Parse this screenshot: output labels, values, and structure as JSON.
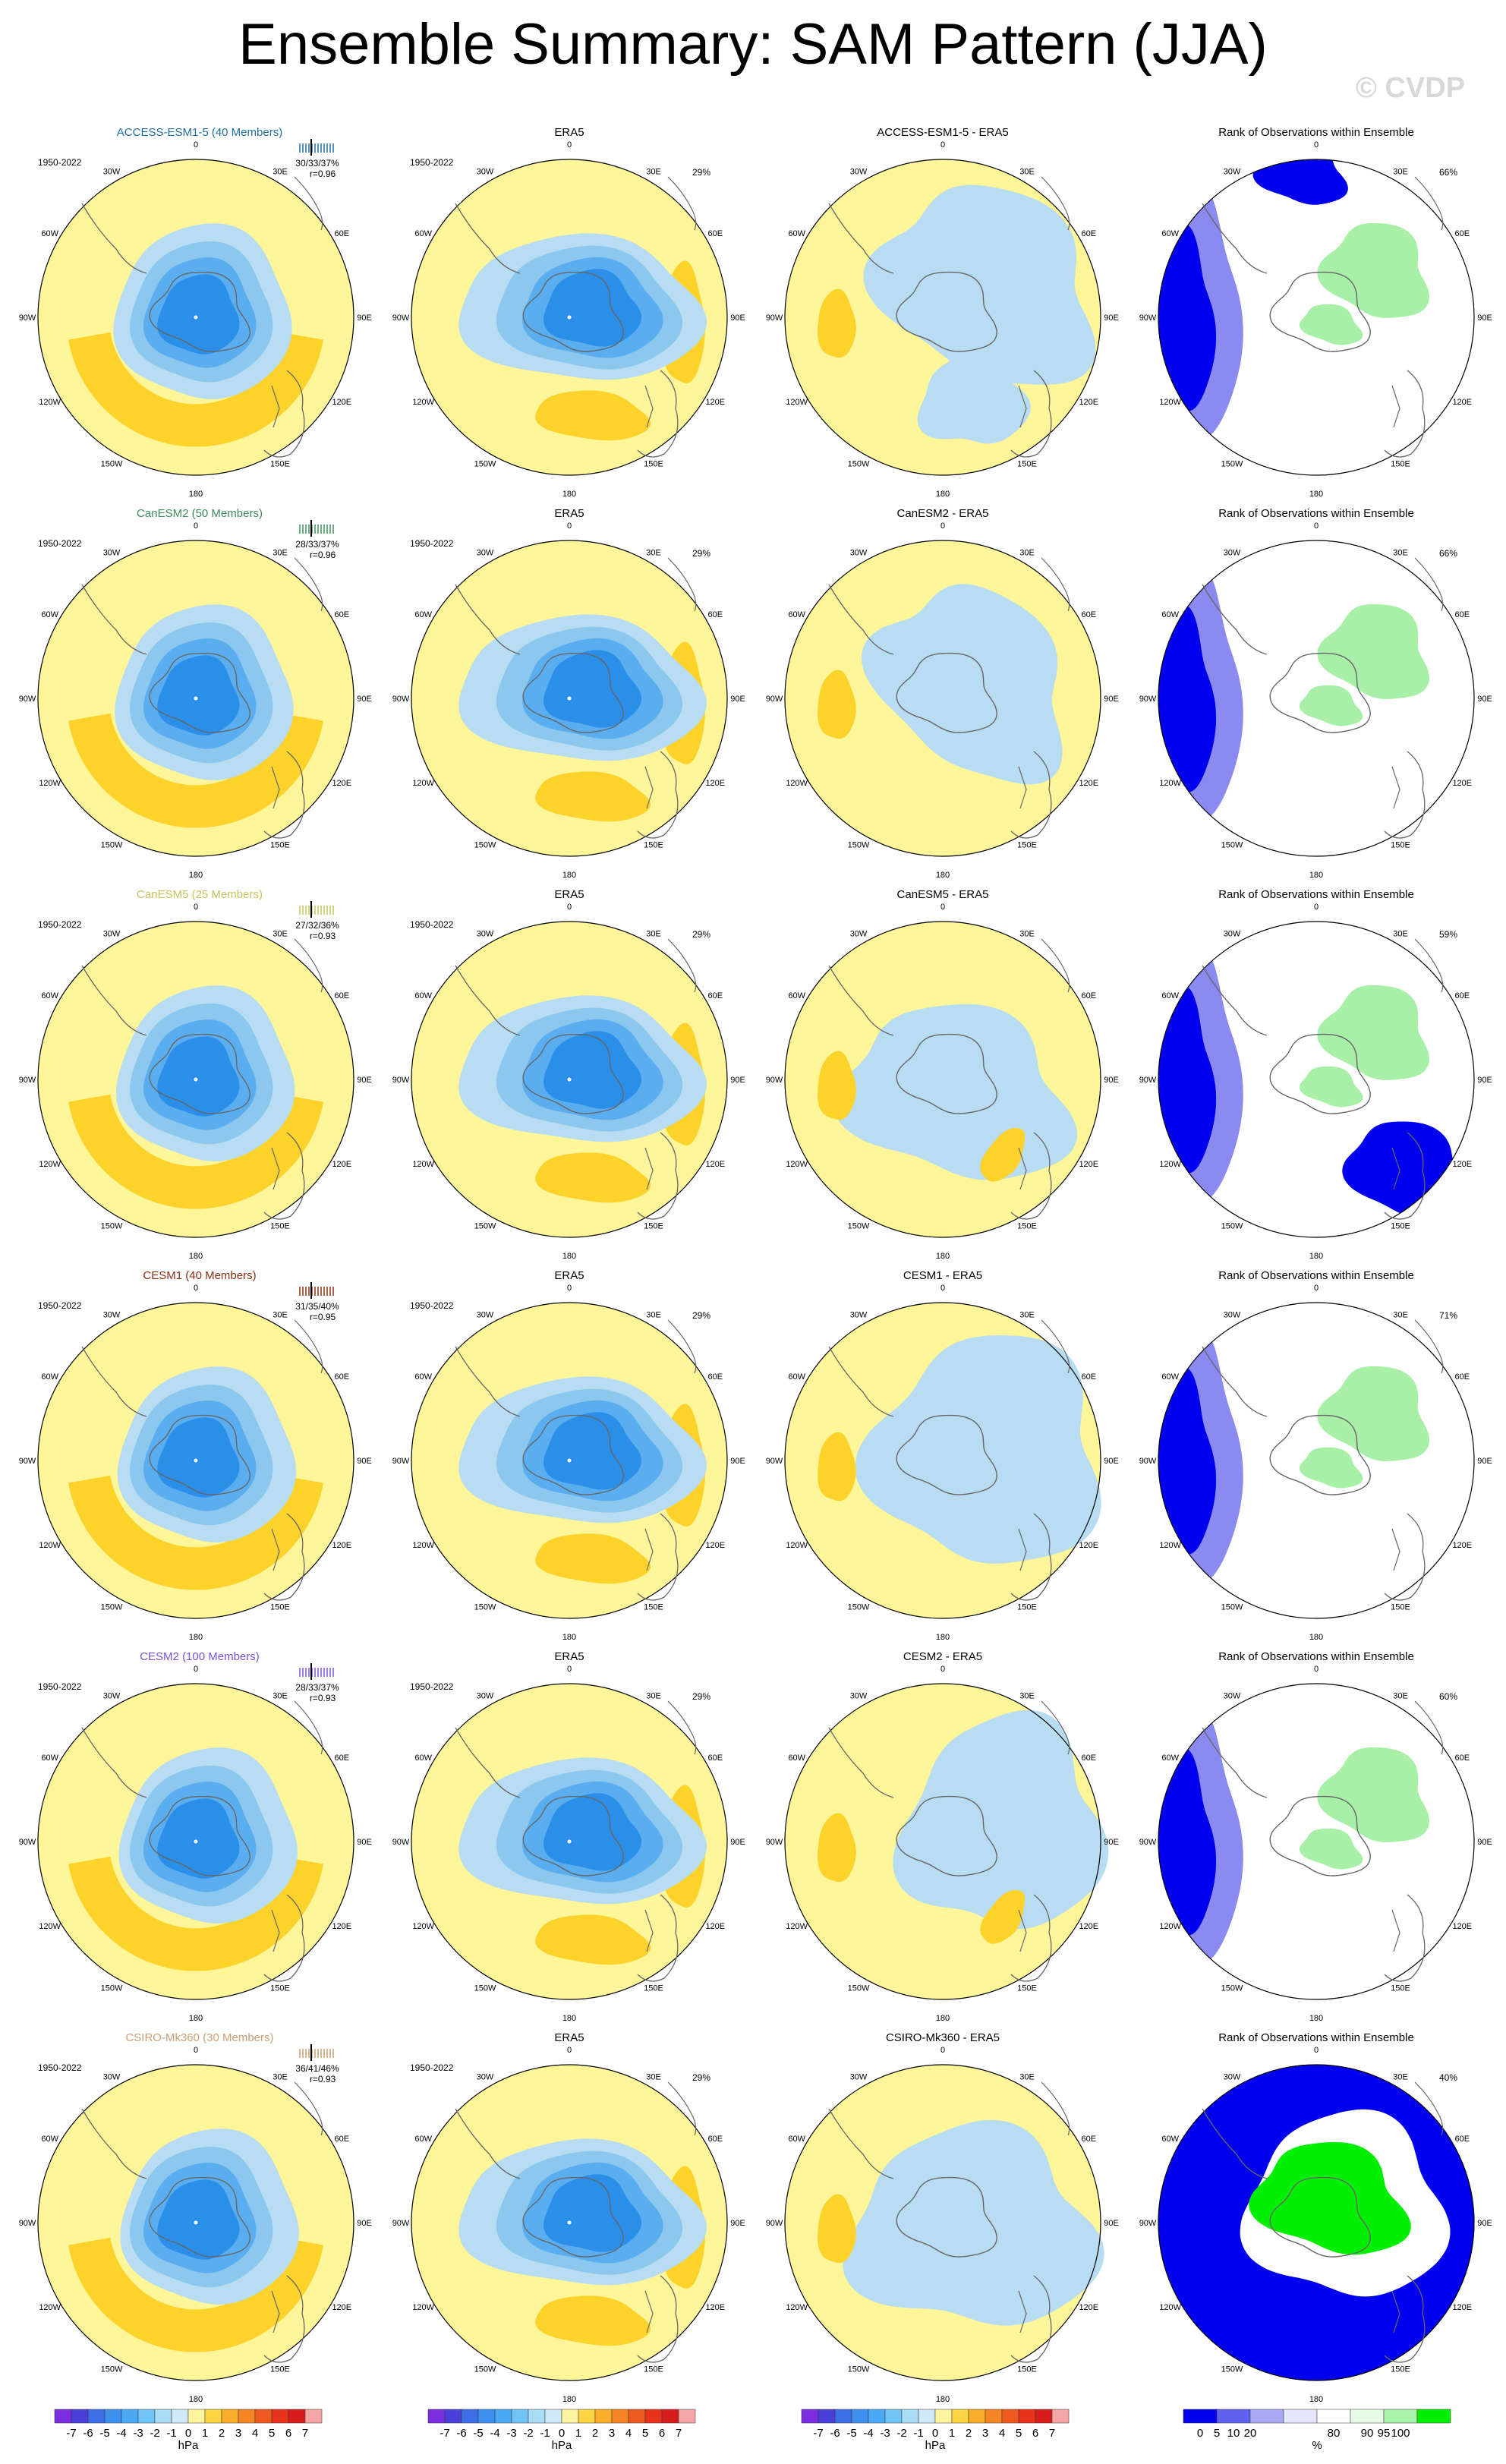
{
  "title": "Ensemble Summary: SAM Pattern (JJA)",
  "watermark": "© CVDP",
  "period": "1950-2022",
  "lon_labels": [
    "0",
    "30E",
    "60E",
    "90E",
    "120E",
    "150E",
    "180",
    "150W",
    "120W",
    "90W",
    "60W",
    "30W"
  ],
  "colors": {
    "pos1": "#fff599",
    "pos2": "#fdd22a",
    "pos3": "#f9a825",
    "pos4": "#f47c20",
    "neg1": "#b8dcf2",
    "neg2": "#8cc8ee",
    "neg3": "#5aaef0",
    "neg4": "#2b8ee8",
    "neg5": "#4a62dd",
    "neg6": "#5a3fc8",
    "rank_lo": "#0000ee",
    "rank_mid": "#8a8af0",
    "rank_white": "#ffffff",
    "rank_hi": "#00ee00",
    "rank_hilite": "#a8f0a8",
    "land": "#666666"
  },
  "rows": [
    {
      "model": "ACCESS-ESM1-5 (40 Members)",
      "model_color": "#1f6fa0",
      "stats": "30/33/37%",
      "corr": "r=0.96",
      "obs_pct": "29%",
      "diff_title": "ACCESS-ESM1-5 - ERA5",
      "rank_pct": "66%"
    },
    {
      "model": "CanESM2 (50 Members)",
      "model_color": "#3f8a5a",
      "stats": "28/33/37%",
      "corr": "r=0.96",
      "obs_pct": "29%",
      "diff_title": "CanESM2 - ERA5",
      "rank_pct": "66%"
    },
    {
      "model": "CanESM5 (25 Members)",
      "model_color": "#c9c260",
      "stats": "27/32/36%",
      "corr": "r=0.93",
      "obs_pct": "29%",
      "diff_title": "CanESM5 - ERA5",
      "rank_pct": "59%"
    },
    {
      "model": "CESM1 (40 Members)",
      "model_color": "#8a2f12",
      "stats": "31/35/40%",
      "corr": "r=0.95",
      "obs_pct": "29%",
      "diff_title": "CESM1 - ERA5",
      "rank_pct": "71%"
    },
    {
      "model": "CESM2 (100 Members)",
      "model_color": "#7a52d8",
      "stats": "28/33/37%",
      "corr": "r=0.93",
      "obs_pct": "29%",
      "diff_title": "CESM2 - ERA5",
      "rank_pct": "60%"
    },
    {
      "model": "CSIRO-Mk360 (30 Members)",
      "model_color": "#c8a074",
      "stats": "36/41/46%",
      "corr": "r=0.93",
      "obs_pct": "29%",
      "diff_title": "CSIRO-Mk360 - ERA5",
      "rank_pct": "40%"
    }
  ],
  "obs_title": "ERA5",
  "rank_title": "Rank of Observations within Ensemble",
  "colorbar_hpa": {
    "labels": [
      "-7",
      "-6",
      "-5",
      "-4",
      "-3",
      "-2",
      "-1",
      "0",
      "1",
      "2",
      "3",
      "4",
      "5",
      "6",
      "7"
    ],
    "unit": "hPa",
    "colors": [
      "#7b2ee0",
      "#4a3fd8",
      "#3c6ee6",
      "#3d8ff0",
      "#4aa9f5",
      "#6fc3f5",
      "#a9dcf5",
      "#cfeaf6",
      "#fff4a0",
      "#fdd540",
      "#f9ae2a",
      "#f48424",
      "#ef5a1e",
      "#e8321c",
      "#d81c1c",
      "#f4a6a6"
    ]
  },
  "colorbar_rank": {
    "labels": [
      "0",
      "5",
      "10",
      "20",
      "80",
      "90",
      "95",
      "100"
    ],
    "unit": "%",
    "colors": [
      "#0000ee",
      "#6060ee",
      "#a8a8f4",
      "#e6e6fa",
      "#ffffff",
      "#e6fae6",
      "#a8f4a8",
      "#00ee00"
    ]
  }
}
